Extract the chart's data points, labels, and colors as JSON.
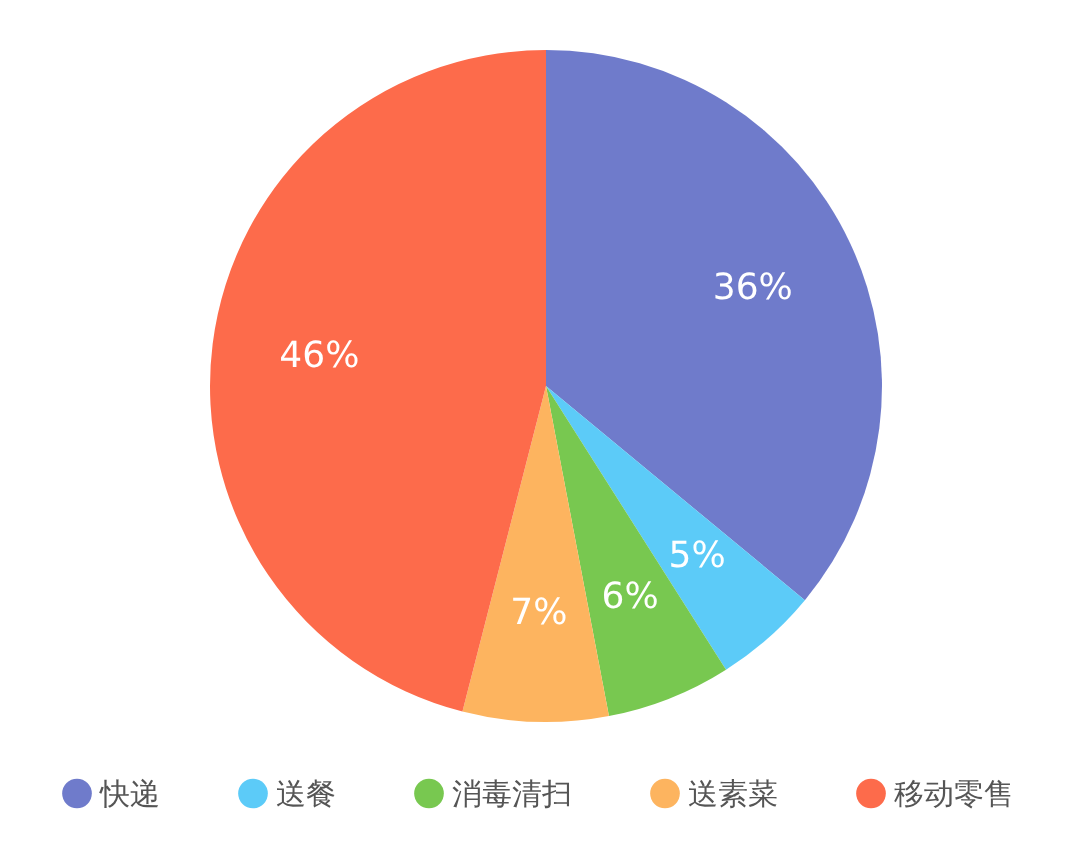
{
  "chart_data": {
    "type": "pie",
    "categories": [
      "快递",
      "送餐",
      "消毒清扫",
      "送素菜",
      "移动零售"
    ],
    "values": [
      36,
      5,
      6,
      7,
      46
    ],
    "colors": [
      "#6f7bcb",
      "#5ccbf8",
      "#78c850",
      "#fdb45f",
      "#fd6b4b"
    ],
    "value_labels": [
      "36%",
      "5%",
      "6%",
      "7%",
      "46%"
    ],
    "legend": "bottom"
  }
}
